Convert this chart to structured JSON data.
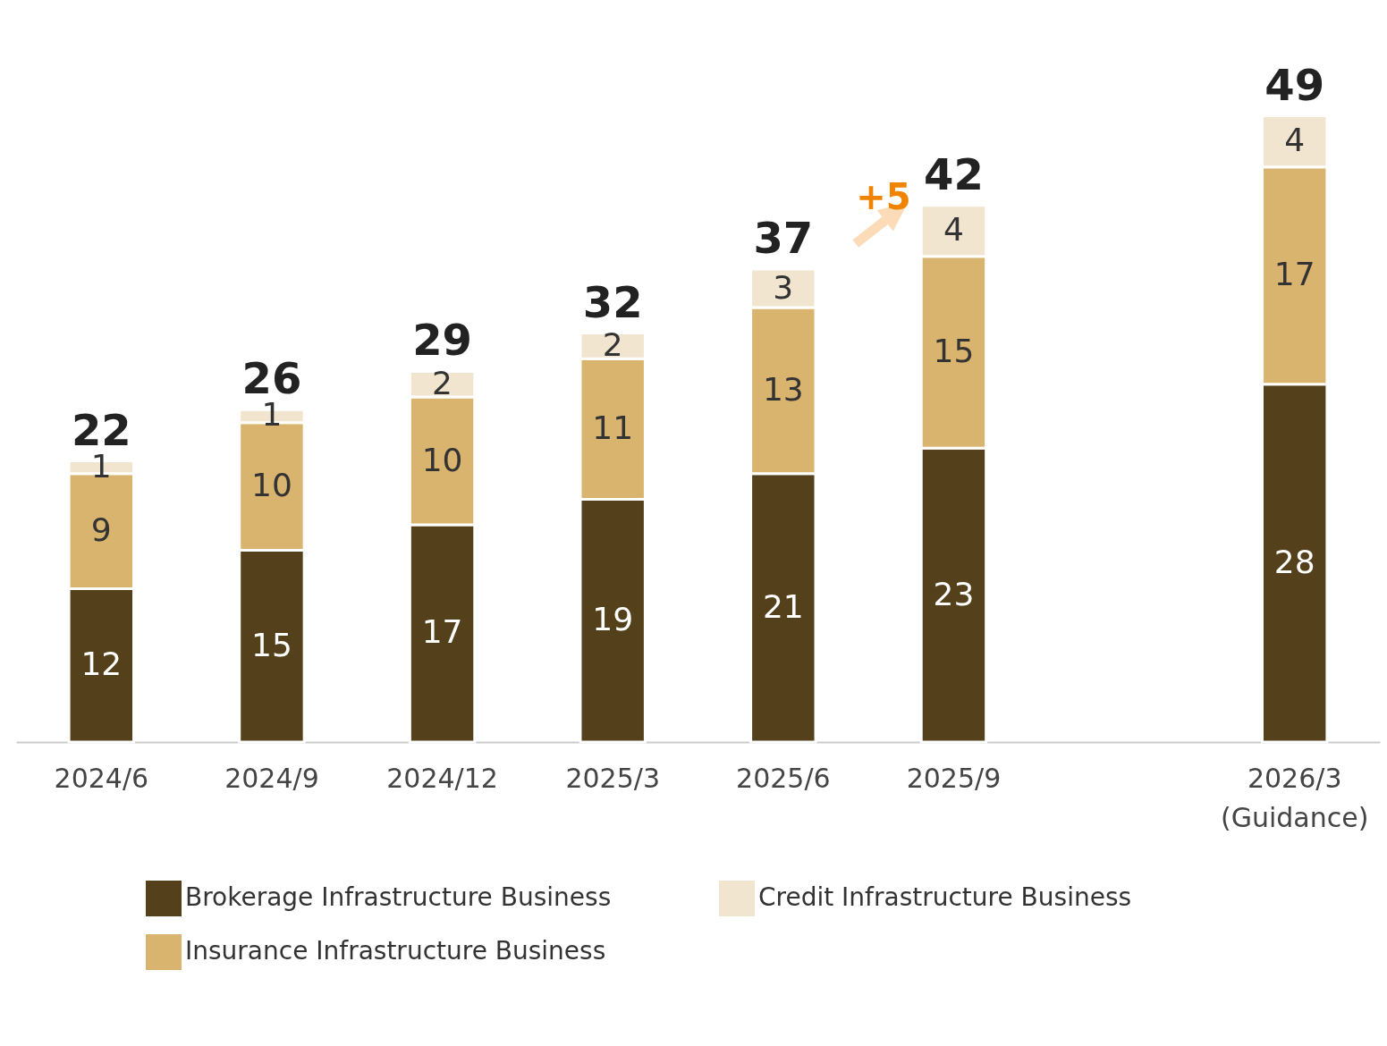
{
  "chart_data": {
    "type": "bar",
    "stacked": true,
    "data_labels": true,
    "legend": "bottom",
    "categories": [
      "2024/6",
      "2024/9",
      "2024/12",
      "2025/3",
      "2025/6",
      "2025/9",
      null,
      "2026/3\n(Guidance)"
    ],
    "series": [
      {
        "name": "Brokerage Infrastructure Business",
        "color": "#54401a",
        "values": [
          12,
          15,
          17,
          19,
          21,
          23,
          null,
          28
        ]
      },
      {
        "name": "Insurance Infrastructure Business",
        "color": "#d9b46f",
        "values": [
          9,
          10,
          10,
          11,
          13,
          15,
          null,
          17
        ]
      },
      {
        "name": "Credit Infrastructure Business",
        "color": "#f1e5cf",
        "values": [
          1,
          1,
          2,
          2,
          3,
          4,
          null,
          4
        ]
      }
    ],
    "totals": [
      "22",
      "26",
      "29",
      "32",
      "37",
      "42",
      null,
      "49"
    ],
    "annotations": [
      "+5"
    ]
  }
}
